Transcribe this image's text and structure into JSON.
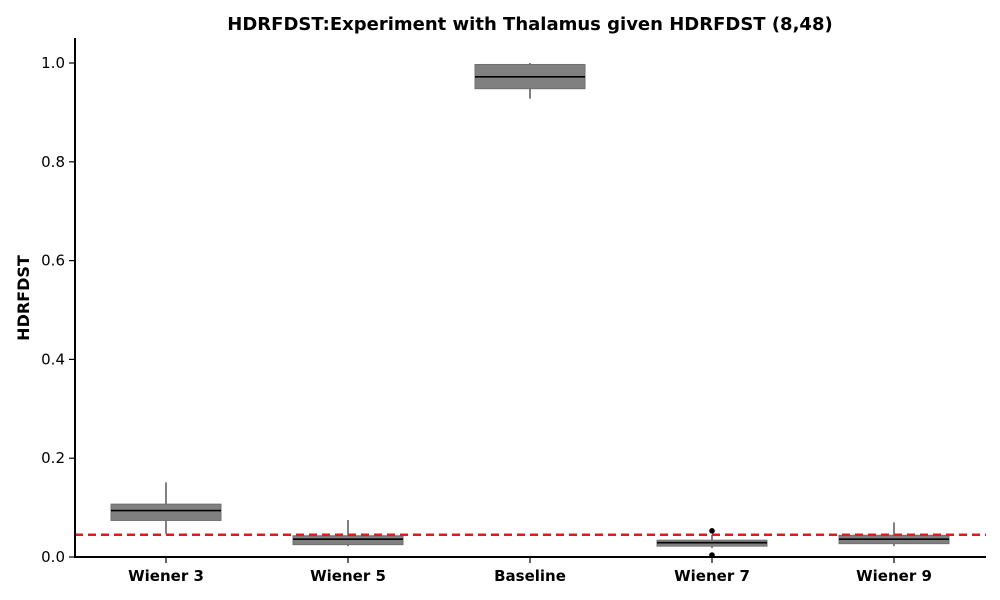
{
  "chart_data": {
    "type": "box",
    "title": "HDRFDST:Experiment with Thalamus given HDRFDST (8,48)",
    "xlabel": "",
    "ylabel": "HDRFDST",
    "ylim": [
      0,
      1.05
    ],
    "yticks": [
      "0.0",
      "0.2",
      "0.4",
      "0.6",
      "0.8",
      "1.0"
    ],
    "grid": false,
    "colors": {
      "box": "#808080",
      "median": "#000000",
      "reference": "#e31a1c"
    },
    "reference_line": {
      "y": 0.045,
      "style": "dashed"
    },
    "categories": [
      "Wiener 3",
      "Wiener 5",
      "Baseline",
      "Wiener 7",
      "Wiener 9"
    ],
    "boxes": [
      {
        "label": "Wiener 3",
        "whisker_low": 0.047,
        "q1": 0.074,
        "median": 0.094,
        "q3": 0.107,
        "whisker_high": 0.151,
        "outliers": []
      },
      {
        "label": "Wiener 5",
        "whisker_low": 0.022,
        "q1": 0.025,
        "median": 0.036,
        "q3": 0.043,
        "whisker_high": 0.075,
        "outliers": []
      },
      {
        "label": "Baseline",
        "whisker_low": 0.928,
        "q1": 0.948,
        "median": 0.972,
        "q3": 0.997,
        "whisker_high": 1.0,
        "outliers": []
      },
      {
        "label": "Wiener 7",
        "whisker_low": 0.018,
        "q1": 0.022,
        "median": 0.029,
        "q3": 0.034,
        "whisker_high": 0.045,
        "outliers": [
          0.053,
          0.004
        ]
      },
      {
        "label": "Wiener 9",
        "whisker_low": 0.022,
        "q1": 0.027,
        "median": 0.036,
        "q3": 0.044,
        "whisker_high": 0.07,
        "outliers": []
      }
    ]
  }
}
